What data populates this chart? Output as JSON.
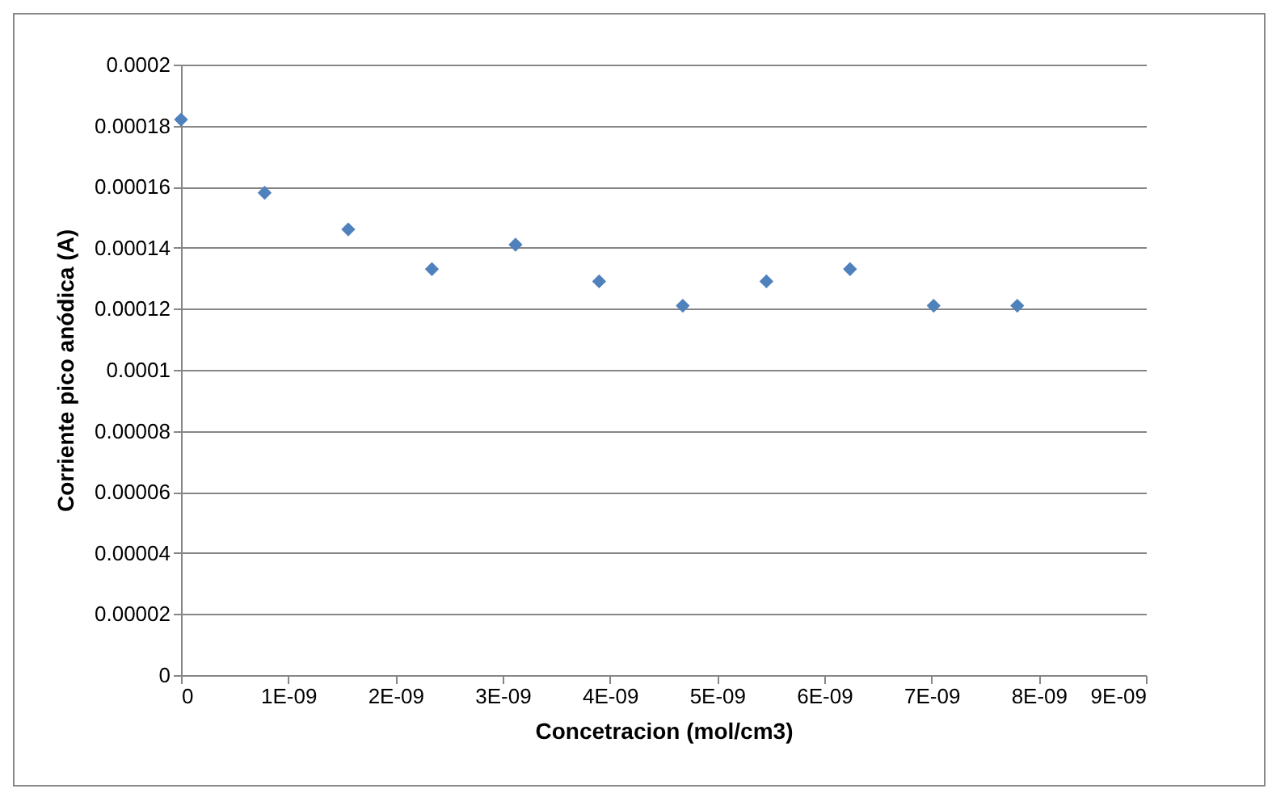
{
  "chart_data": {
    "type": "scatter",
    "xlabel": "Concetracion (mol/cm3)",
    "ylabel": "Corriente pico anódica (A)",
    "x": [
      0,
      7.8e-10,
      1.56e-09,
      2.34e-09,
      3.12e-09,
      3.9e-09,
      4.68e-09,
      5.46e-09,
      6.24e-09,
      7.02e-09,
      7.8e-09
    ],
    "series": [
      {
        "color": "#4f81bd",
        "values": [
          0.000182,
          0.000158,
          0.000146,
          0.000133,
          0.000141,
          0.000129,
          0.000121,
          0.000129,
          0.000133,
          0.000121,
          0.000121
        ]
      }
    ],
    "xlim": [
      0,
      9e-09
    ],
    "xticks": [
      0,
      {
        "value": 1e-09,
        "label": "1E-09"
      },
      {
        "value": 2e-09,
        "label": "2E-09"
      },
      {
        "value": 3e-09,
        "label": "3E-09"
      },
      {
        "value": 4e-09,
        "label": "4E-09"
      },
      {
        "value": 5e-09,
        "label": "5E-09"
      },
      {
        "value": 6e-09,
        "label": "6E-09"
      },
      {
        "value": 7e-09,
        "label": "7E-09"
      },
      {
        "value": 8e-09,
        "label": "8E-09"
      },
      {
        "value": 9e-09,
        "label": "9E-09"
      }
    ],
    "ylim": [
      0,
      0.0002
    ],
    "yticks": [
      0,
      {
        "value": 2e-05,
        "label": "0.00002"
      },
      {
        "value": 4e-05,
        "label": "0.00004"
      },
      {
        "value": 6e-05,
        "label": "0.00006"
      },
      {
        "value": 8e-05,
        "label": "0.00008"
      },
      0.0001,
      0.00012,
      0.00014,
      0.00016,
      0.00018,
      0.0002
    ],
    "grid": "y",
    "marker": "diamond"
  }
}
